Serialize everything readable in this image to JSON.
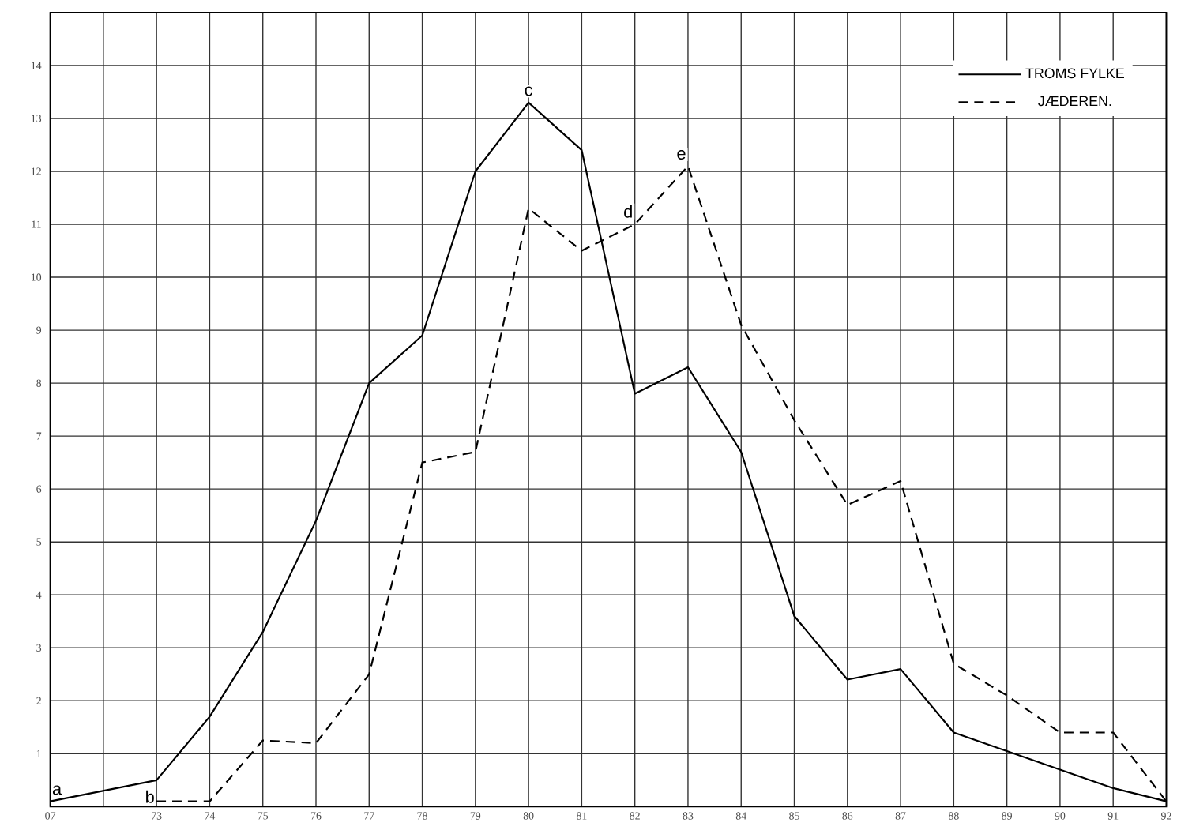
{
  "chart_data": {
    "type": "line",
    "categories": [
      "07",
      null,
      "73",
      "74",
      "75",
      "76",
      "77",
      "78",
      "79",
      "80",
      "81",
      "82",
      "83",
      "84",
      "85",
      "86",
      "87",
      "88",
      "89",
      "90",
      "91",
      "92"
    ],
    "series": [
      {
        "name": "TROMS FYLKE",
        "color": "#000000",
        "line_style": "solid",
        "values": [
          0.1,
          null,
          0.5,
          1.7,
          3.3,
          5.4,
          8.0,
          8.9,
          12.0,
          13.3,
          12.4,
          7.8,
          8.3,
          6.7,
          3.6,
          2.4,
          2.6,
          1.4,
          1.05,
          0.7,
          0.35,
          0.1
        ]
      },
      {
        "name": "JÆDEREN.",
        "color": "#000000",
        "line_style": "dashed",
        "values": [
          null,
          null,
          0.1,
          0.1,
          1.25,
          1.2,
          2.5,
          6.5,
          6.7,
          11.3,
          10.5,
          11.0,
          12.1,
          9.1,
          7.3,
          5.7,
          6.15,
          2.7,
          2.1,
          1.4,
          1.4,
          0.1
        ]
      }
    ],
    "ylim": [
      0,
      15
    ],
    "yticks": [
      1,
      2,
      3,
      4,
      5,
      6,
      7,
      8,
      9,
      10,
      11,
      12,
      13,
      14
    ],
    "grid": true,
    "legend": "top right",
    "annotations": [
      {
        "text": "a",
        "x": "07",
        "y": 0.1
      },
      {
        "text": "b",
        "x": "73",
        "y": 0.1
      },
      {
        "text": "c",
        "x": "80",
        "y": 13.3
      },
      {
        "text": "d",
        "x": "82",
        "y": 11.0
      },
      {
        "text": "e",
        "x": "83",
        "y": 12.1
      }
    ]
  }
}
